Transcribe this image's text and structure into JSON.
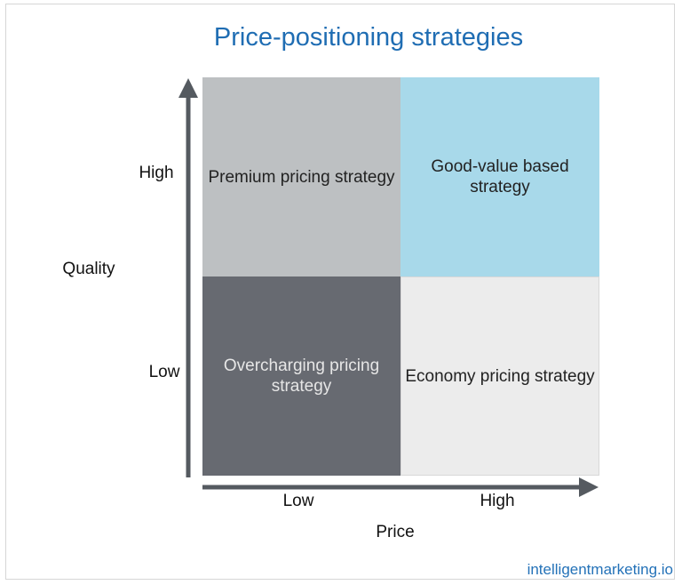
{
  "title": "Price-positioning strategies",
  "quadrants": [
    {
      "label": "Premium pricing strategy"
    },
    {
      "label": "Good-value based strategy"
    },
    {
      "label": "Overcharging pricing strategy"
    },
    {
      "label": "Economy pricing strategy"
    }
  ],
  "y_axis": {
    "label": "Quality",
    "high": "High",
    "low": "Low"
  },
  "x_axis": {
    "label": "Price",
    "low": "Low",
    "high": "High"
  },
  "footer": "intelligentmarketing.io"
}
